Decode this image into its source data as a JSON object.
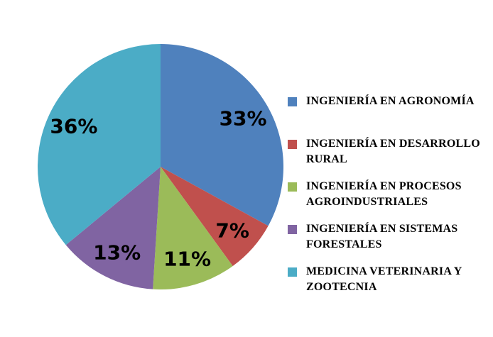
{
  "chart_data": {
    "type": "pie",
    "title": "",
    "categories": [
      "INGENIERÍA EN AGRONOMÍA",
      "INGENIERÍA EN DESARROLLO\nRURAL",
      "INGENIERÍA EN PROCESOS\nAGROINDUSTRIALES",
      "INGENIERÍA EN SISTEMAS\nFORESTALES",
      "MEDICINA VETERINARIA Y\nZOOTECNIA"
    ],
    "values": [
      33,
      7,
      11,
      13,
      36
    ],
    "display_labels": [
      "33%",
      "7%",
      "11%",
      "13%",
      "36%"
    ],
    "colors": [
      "#4F81BD",
      "#C0504D",
      "#9BBB59",
      "#8064A2",
      "#4BACC6"
    ],
    "label_color": "#000000",
    "background": "#FFFFFF",
    "legend_position": "right",
    "start_angle_deg": 0,
    "direction": "clockwise",
    "grid": false
  }
}
